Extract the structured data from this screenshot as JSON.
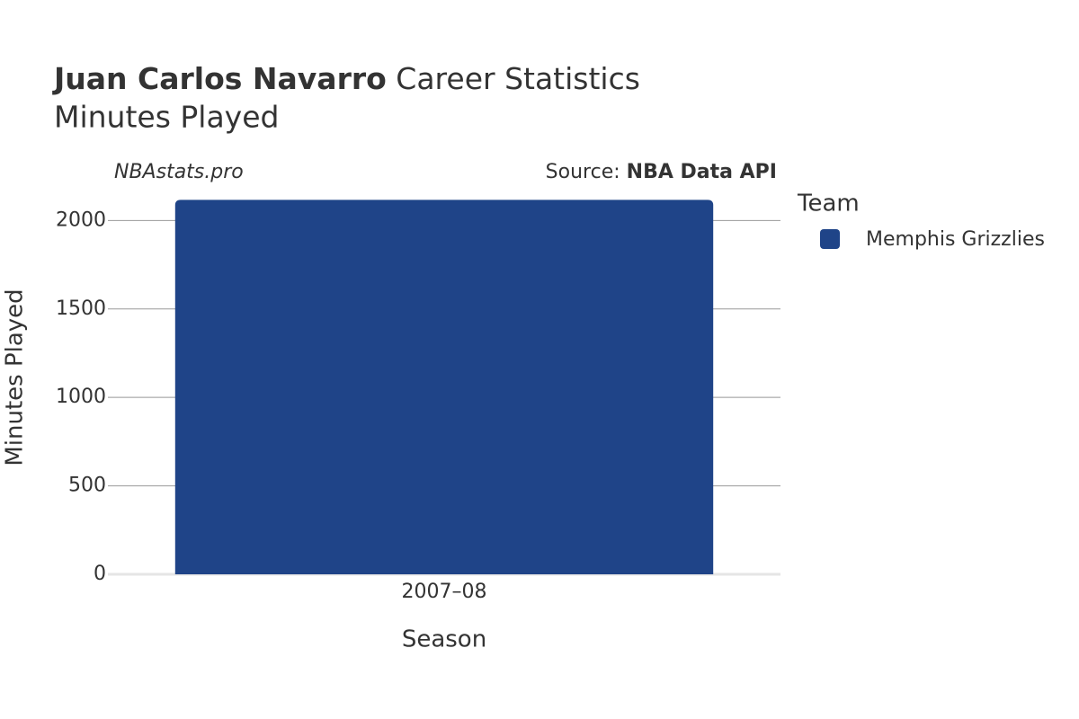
{
  "chart_data": {
    "type": "bar",
    "title": "Juan Carlos Navarro",
    "title_suffix": "Career Statistics",
    "subtitle": "Minutes Played",
    "watermark": "NBAstats.pro",
    "source_prefix": "Source:",
    "source": "NBA Data API",
    "x_label": "Season",
    "y_label": "Minutes Played",
    "legend_title": "Team",
    "categories": [
      "2007–08"
    ],
    "series": [
      {
        "name": "Memphis Grizzlies",
        "color": "#1f4488",
        "values": [
          2117
        ]
      }
    ],
    "ylim": [
      0,
      2200
    ],
    "yticks": [
      0,
      500,
      1000,
      1500,
      2000
    ],
    "grid": true,
    "legend_position": "right"
  }
}
